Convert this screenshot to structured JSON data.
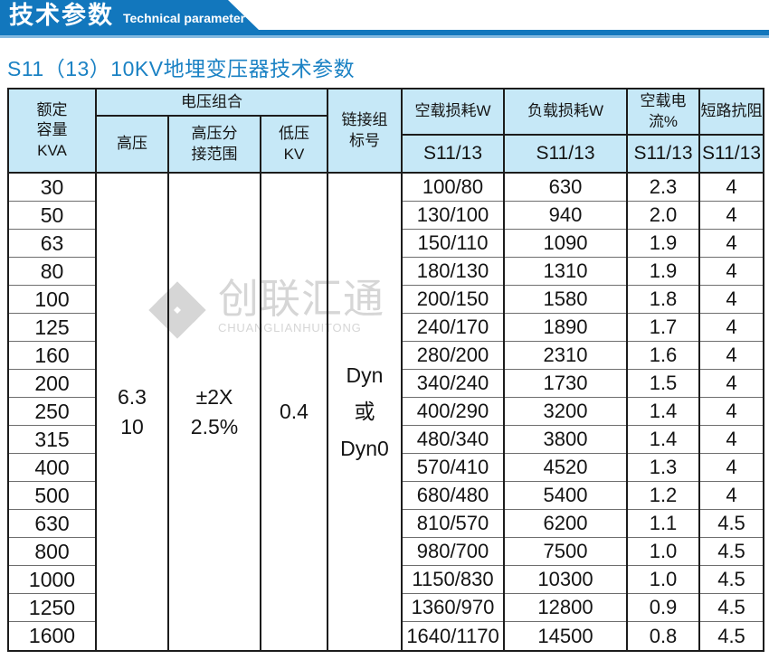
{
  "banner": {
    "title": "技术参数",
    "subtitle_en": "Technical parameter"
  },
  "page_subtitle": "S11（13）10KV地埋变压器技术参数",
  "watermark": {
    "cn": "创联汇通",
    "en": "CHUANGLIANHUITONG"
  },
  "colors": {
    "banner_blue": "#1277bd",
    "banner_light": "#82b9e0",
    "header_bg": "#c6e8f7",
    "subtitle_blue": "#1b82c4",
    "watermark_gray": "#d6d6d6"
  },
  "table": {
    "header": {
      "capacity": "额定\n容量\nKVA",
      "voltage_group": "电压组合",
      "hv": "高压",
      "hv_tap_range": "高压分\n接范围",
      "lv": "低压\nKV",
      "vector_group": "链接组\n标号",
      "no_load_loss": "空载损耗W",
      "load_loss": "负载损耗W",
      "no_load_current": "空载电流%",
      "impedance": "短路抗阻",
      "series": "S11/13"
    },
    "merged": {
      "hv": "6.3\n10",
      "hv_tap_range": "±2X\n2.5%",
      "lv": "0.4",
      "vector_group": "Dyn\n或\nDyn0"
    },
    "capacity": [
      "30",
      "50",
      "63",
      "80",
      "100",
      "125",
      "160",
      "200",
      "250",
      "315",
      "400",
      "500",
      "630",
      "800",
      "1000",
      "1250",
      "1600"
    ],
    "no_load_loss": [
      "100/80",
      "130/100",
      "150/110",
      "180/130",
      "200/150",
      "240/170",
      "280/200",
      "340/240",
      "400/290",
      "480/340",
      "570/410",
      "680/480",
      "810/570",
      "980/700",
      "1150/830",
      "1360/970",
      "1640/1170"
    ],
    "load_loss": [
      "630",
      "940",
      "1090",
      "1310",
      "1580",
      "1890",
      "2310",
      "1730",
      "3200",
      "3800",
      "4520",
      "5400",
      "6200",
      "7500",
      "10300",
      "12800",
      "14500"
    ],
    "no_load_current": [
      "2.3",
      "2.0",
      "1.9",
      "1.9",
      "1.8",
      "1.7",
      "1.6",
      "1.5",
      "1.4",
      "1.4",
      "1.3",
      "1.2",
      "1.1",
      "1.0",
      "1.0",
      "0.9",
      "0.8"
    ],
    "impedance": [
      "4",
      "4",
      "4",
      "4",
      "4",
      "4",
      "4",
      "4",
      "4",
      "4",
      "4",
      "4",
      "4.5",
      "4.5",
      "4.5",
      "4.5",
      "4.5"
    ]
  }
}
